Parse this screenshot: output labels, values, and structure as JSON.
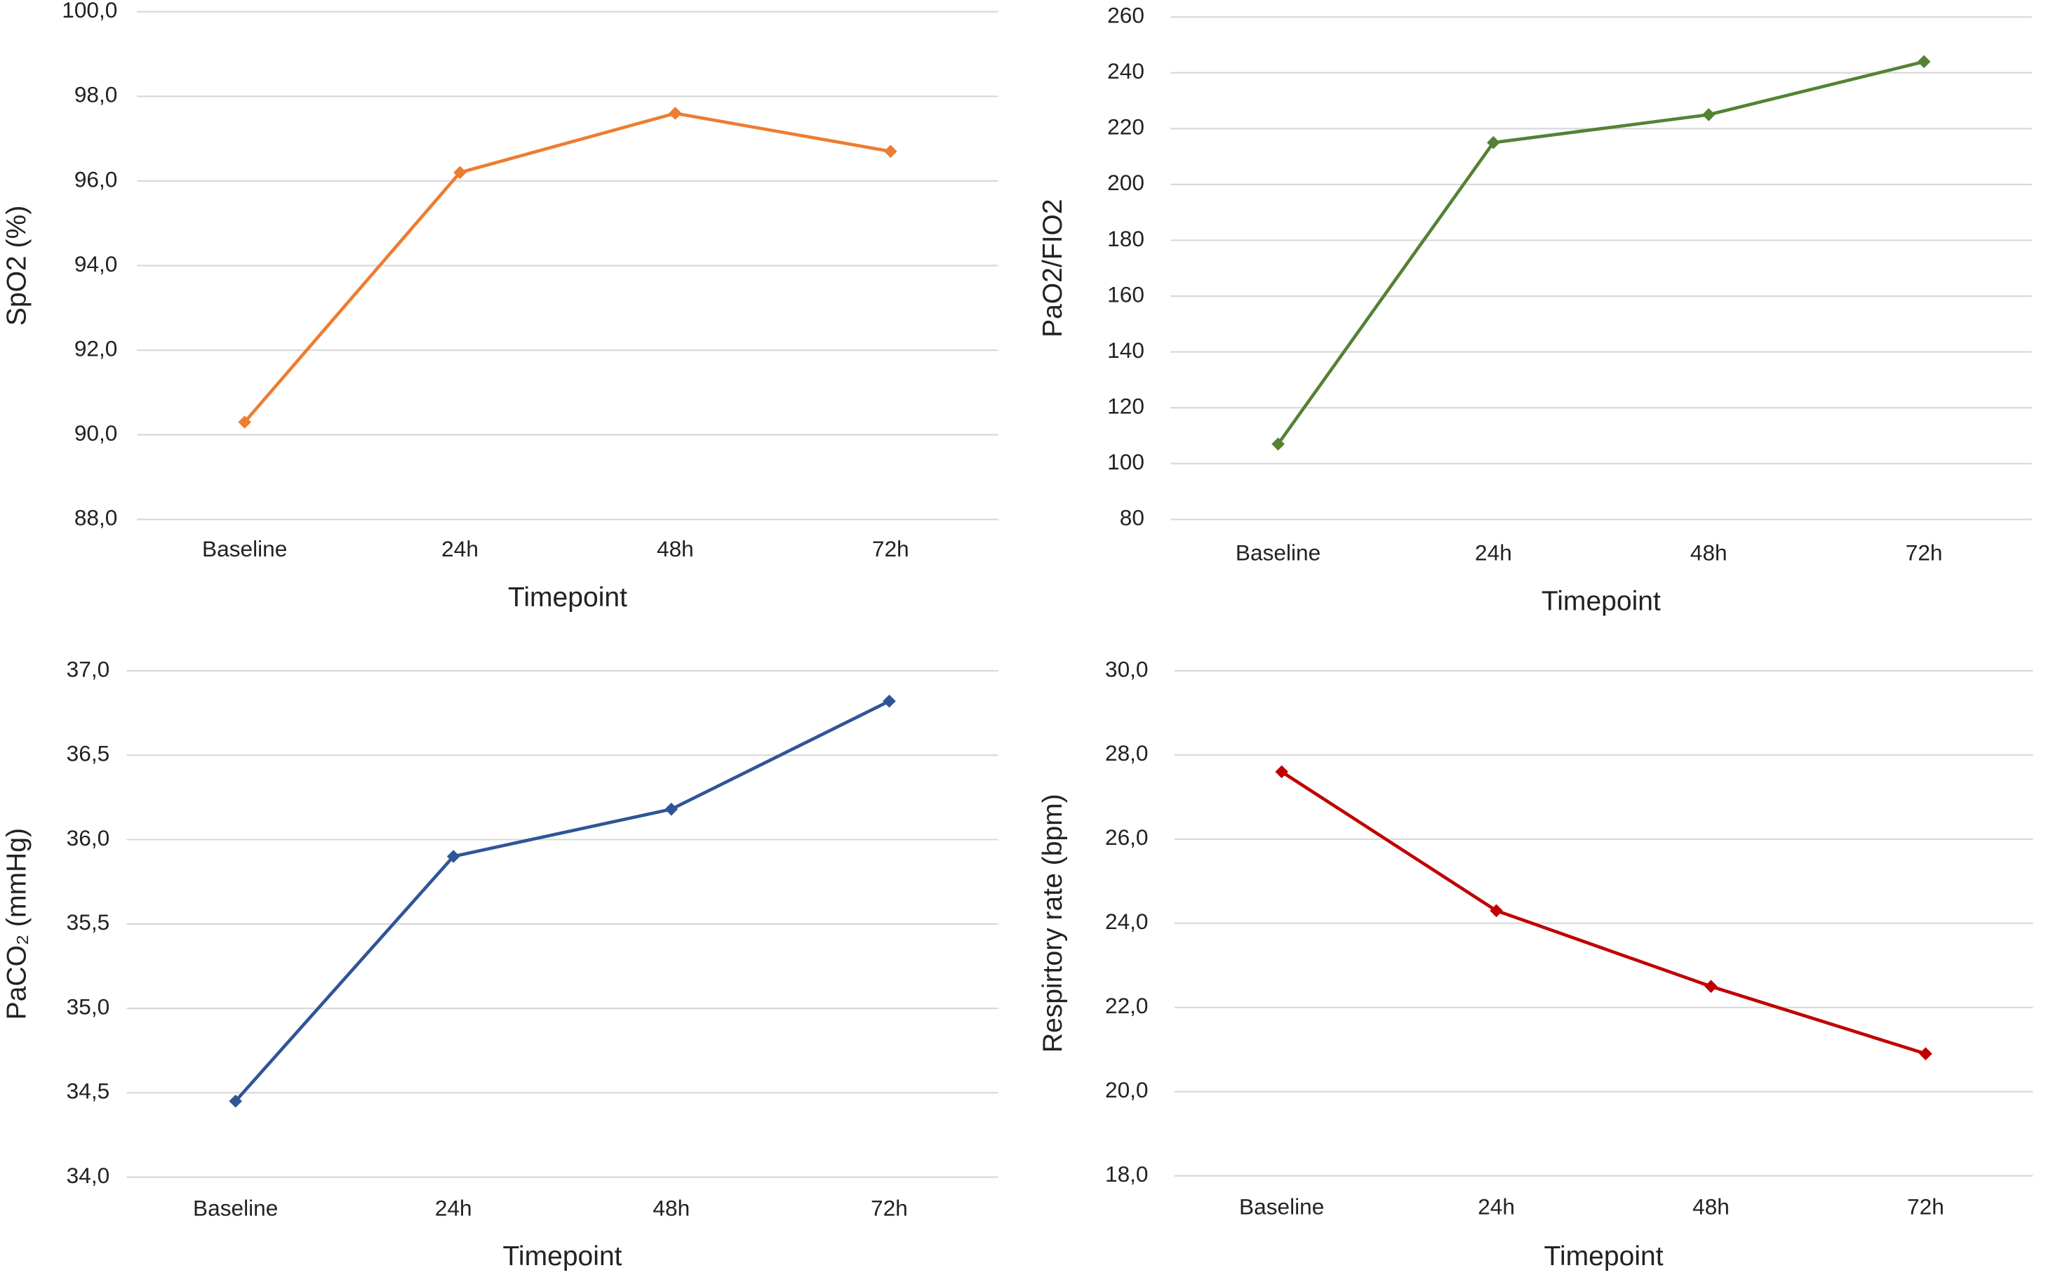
{
  "chart_data": [
    {
      "type": "line",
      "ylabel": "SpO2 (%)",
      "xlabel": "Timepoint",
      "categories": [
        "Baseline",
        "24h",
        "48h",
        "72h"
      ],
      "series": [
        {
          "color": "#ed7d31",
          "values": [
            90.3,
            96.2,
            97.6,
            96.7
          ]
        }
      ],
      "ylim": [
        88,
        100
      ],
      "yticks": [
        {
          "value": 88,
          "label": "88,0"
        },
        {
          "value": 90,
          "label": "90,0"
        },
        {
          "value": 92,
          "label": "92,0"
        },
        {
          "value": 94,
          "label": "94,0"
        },
        {
          "value": 96,
          "label": "96,0"
        },
        {
          "value": 98,
          "label": "98,0"
        },
        {
          "value": 100,
          "label": "100,0"
        }
      ],
      "grid": true
    },
    {
      "type": "line",
      "ylabel": "PaO2/FIO2",
      "xlabel": "Timepoint",
      "categories": [
        "Baseline",
        "24h",
        "48h",
        "72h"
      ],
      "series": [
        {
          "color": "#548235",
          "values": [
            107,
            215,
            225,
            244
          ]
        }
      ],
      "ylim": [
        80,
        260
      ],
      "yticks": [
        80,
        100,
        120,
        140,
        160,
        180,
        200,
        220,
        240,
        260
      ],
      "grid": true
    },
    {
      "type": "line",
      "ylabel": "PaCO₂ (mmHg)",
      "xlabel": "Timepoint",
      "categories": [
        "Baseline",
        "24h",
        "48h",
        "72h"
      ],
      "series": [
        {
          "color": "#2f5597",
          "values": [
            34.45,
            35.9,
            36.18,
            36.82
          ]
        }
      ],
      "ylim": [
        34,
        37
      ],
      "yticks": [
        {
          "value": 34,
          "label": "34,0"
        },
        {
          "value": 34.5,
          "label": "34,5"
        },
        {
          "value": 35,
          "label": "35,0"
        },
        {
          "value": 35.5,
          "label": "35,5"
        },
        {
          "value": 36,
          "label": "36,0"
        },
        {
          "value": 36.5,
          "label": "36,5"
        },
        {
          "value": 37,
          "label": "37,0"
        }
      ],
      "grid": true
    },
    {
      "type": "line",
      "ylabel": "Respirtory rate (bpm)",
      "xlabel": "Timepoint",
      "categories": [
        "Baseline",
        "24h",
        "48h",
        "72h"
      ],
      "series": [
        {
          "color": "#c00000",
          "values": [
            27.6,
            24.3,
            22.5,
            20.9
          ]
        }
      ],
      "ylim": [
        18,
        30
      ],
      "yticks": [
        {
          "value": 18,
          "label": "18,0"
        },
        {
          "value": 20,
          "label": "20,0"
        },
        {
          "value": 22,
          "label": "22,0"
        },
        {
          "value": 24,
          "label": "24,0"
        },
        {
          "value": 26,
          "label": "26,0"
        },
        {
          "value": 28,
          "label": "28,0"
        },
        {
          "value": 30,
          "label": "30,0"
        }
      ],
      "grid": true
    }
  ]
}
